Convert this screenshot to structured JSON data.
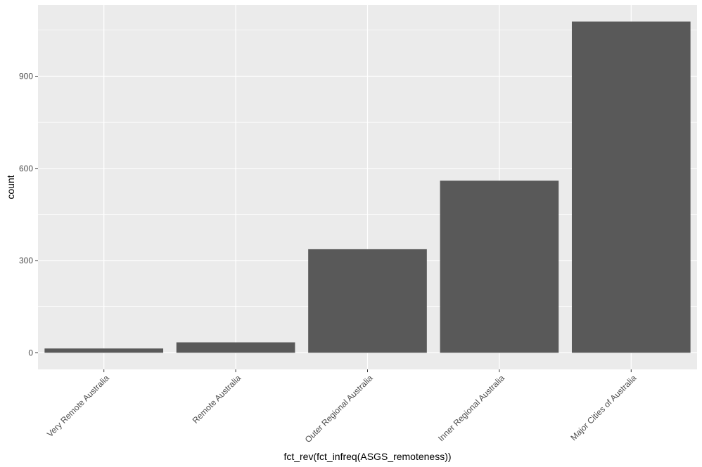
{
  "chart_data": {
    "type": "bar",
    "title": "",
    "xlabel": "fct_rev(fct_infreq(ASGS_remoteness))",
    "ylabel": "count",
    "categories": [
      "Very Remote Australia",
      "Remote Australia",
      "Outer Regional Australia",
      "Inner Regional Australia",
      "Major Cities of Australia"
    ],
    "values": [
      14,
      34,
      337,
      560,
      1078
    ],
    "yticks": [
      0,
      300,
      600,
      900
    ],
    "ylim": [
      -54,
      1132
    ],
    "grid": true,
    "legend": "none",
    "colors": {
      "panel": "#ebebeb",
      "grid_major": "#ffffff",
      "bar": "#595959",
      "tick_text": "#4d4d4d"
    }
  }
}
